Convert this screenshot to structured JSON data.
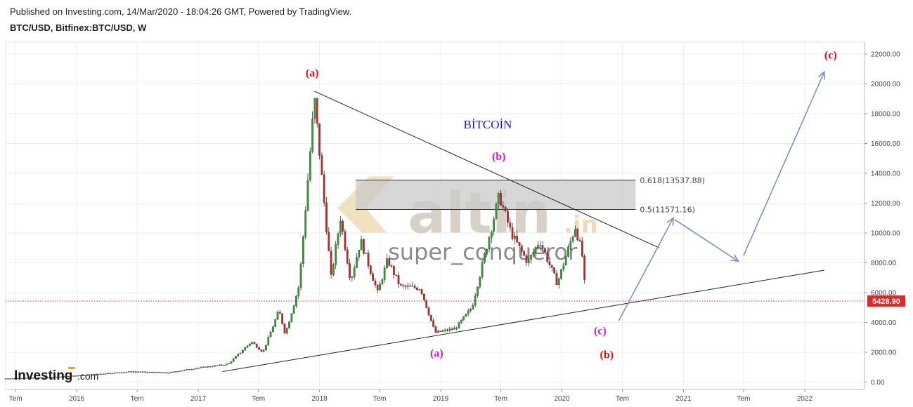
{
  "header": {
    "published": "Published on Investing.com, 14/Mar/2020 - 18:04:26 GMT, Powered by TradingView.",
    "symbol": "BTC/USD, Bitfinex:BTC/USD, W"
  },
  "colors": {
    "up": "#2e9a2e",
    "down": "#c62222",
    "wave_red": "#e0101a",
    "wave_magenta": "#d21ad2",
    "title_blue": "#1c1cc8",
    "arrow": "#7b93c0",
    "price_tag": "#e32525"
  },
  "watermark": {
    "brand": "altin",
    "suffix": ".in",
    "user": "super_conqueror"
  },
  "logo": "Investing.com",
  "chart_data": {
    "type": "candlestick",
    "title": "BİTCOİN",
    "interval": "weekly",
    "x_tick_labels": [
      "Tem",
      "2016",
      "Tem",
      "2017",
      "Tem",
      "2018",
      "Tem",
      "2019",
      "Tem",
      "2020",
      "Tem",
      "2021",
      "Tem",
      "2022"
    ],
    "x_range": [
      "2015-06-01",
      "2022-06-30"
    ],
    "y_range": [
      -500,
      22800
    ],
    "y_ticks": [
      "0.00",
      "2000.00",
      "4000.00",
      "6000.00",
      "8000.00",
      "10000.00",
      "12000.00",
      "14000.00",
      "16000.00",
      "18000.00",
      "20000.00",
      "22000.00"
    ],
    "grid": true,
    "last_price": {
      "value": 5428.9,
      "label": "5428.90"
    },
    "price_path": [
      [
        "2015-06-01",
        230
      ],
      [
        "2015-10-01",
        300
      ],
      [
        "2016-01-01",
        430
      ],
      [
        "2016-06-15",
        700
      ],
      [
        "2016-10-01",
        620
      ],
      [
        "2017-01-01",
        950
      ],
      [
        "2017-04-01",
        1200
      ],
      [
        "2017-06-10",
        2700
      ],
      [
        "2017-07-15",
        2000
      ],
      [
        "2017-09-01",
        4800
      ],
      [
        "2017-09-20",
        3200
      ],
      [
        "2017-11-01",
        6500
      ],
      [
        "2017-12-17",
        19000
      ],
      [
        "2018-02-05",
        7000
      ],
      [
        "2018-03-05",
        11000
      ],
      [
        "2018-04-05",
        6800
      ],
      [
        "2018-05-05",
        9500
      ],
      [
        "2018-06-25",
        6000
      ],
      [
        "2018-07-25",
        8200
      ],
      [
        "2018-09-01",
        6400
      ],
      [
        "2018-11-01",
        6300
      ],
      [
        "2018-12-15",
        3300
      ],
      [
        "2019-02-15",
        3600
      ],
      [
        "2019-04-05",
        5000
      ],
      [
        "2019-06-26",
        12500
      ],
      [
        "2019-08-01",
        10000
      ],
      [
        "2019-09-20",
        8000
      ],
      [
        "2019-10-26",
        9500
      ],
      [
        "2019-12-18",
        6600
      ],
      [
        "2020-02-10",
        10400
      ],
      [
        "2020-03-01",
        8700
      ],
      [
        "2020-03-14",
        5400
      ]
    ],
    "trendlines": [
      {
        "name": "upper-trendline",
        "from": [
          "2017-12-17",
          19500
        ],
        "to": [
          "2020-10-20",
          9000
        ]
      },
      {
        "name": "lower-trendline",
        "from": [
          "2017-03-15",
          700
        ],
        "to": [
          "2022-03-01",
          7500
        ]
      }
    ],
    "fib_zone": {
      "from": "2018-04-20",
      "to": "2020-08-10",
      "levels": [
        {
          "ratio": "0.618",
          "value": 13537.88,
          "label": "0.618(13537.88)"
        },
        {
          "ratio": "0.5",
          "value": 11571.16,
          "label": "0.5(11571.16)"
        }
      ]
    },
    "projection_arrows": [
      {
        "from": [
          "2020-06-20",
          4100
        ],
        "to": [
          "2020-12-01",
          11000
        ]
      },
      {
        "from": [
          "2020-12-05",
          10900
        ],
        "to": [
          "2021-06-15",
          8100
        ]
      },
      {
        "from": [
          "2021-07-01",
          8500
        ],
        "to": [
          "2022-03-01",
          20800
        ]
      }
    ],
    "annotations": [
      {
        "text": "(a)",
        "date": "2017-12-10",
        "value": 20500,
        "color": "red"
      },
      {
        "text": "(b)",
        "date": "2019-06-25",
        "value": 14900,
        "color": "magenta"
      },
      {
        "text": "(a)",
        "date": "2018-12-20",
        "value": 1700,
        "color": "magenta"
      },
      {
        "text": "(c)",
        "date": "2020-04-25",
        "value": 3200,
        "color": "magenta"
      },
      {
        "text": "(b)",
        "date": "2020-05-15",
        "value": 1600,
        "color": "red"
      },
      {
        "text": "(c)",
        "date": "2022-03-20",
        "value": 21700,
        "color": "red"
      }
    ]
  }
}
